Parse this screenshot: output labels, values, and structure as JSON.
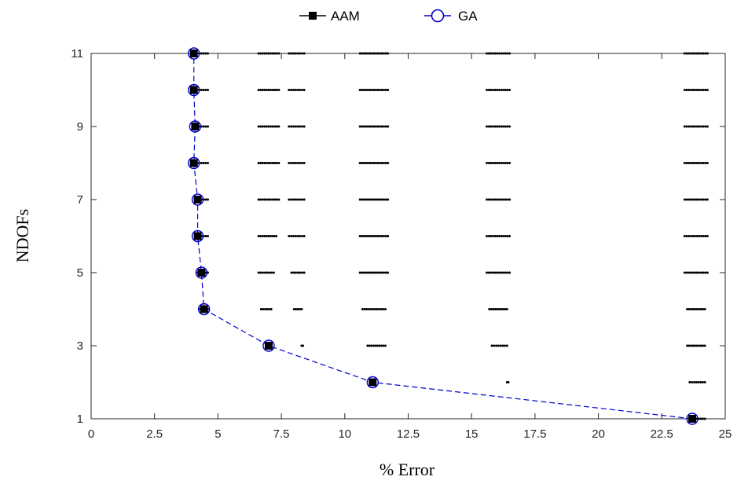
{
  "chart_data": {
    "type": "scatter",
    "xlabel": "% Error",
    "ylabel": "NDOFs",
    "xlim": [
      0,
      25
    ],
    "ylim": [
      1,
      11
    ],
    "xticks": [
      "0",
      "2.5",
      "5",
      "7.5",
      "10",
      "12.5",
      "15",
      "17.5",
      "20",
      "22.5",
      "25"
    ],
    "yticks": [
      "1",
      "3",
      "5",
      "7",
      "9",
      "11"
    ],
    "grid": false,
    "legend_position": "top",
    "legend": [
      {
        "label": "AAM",
        "color": "#000000",
        "marker": "filled-square"
      },
      {
        "label": "GA",
        "color": "#0000cc",
        "marker": "open-circle"
      }
    ],
    "series": [
      {
        "name": "GA",
        "color": "#0000cc",
        "style": "dashed-line-open-circle",
        "x": [
          23.7,
          11.1,
          7.0,
          4.45,
          4.35,
          4.2,
          4.2,
          4.05,
          4.1,
          4.05,
          4.05
        ],
        "y": [
          1,
          2,
          3,
          4,
          5,
          6,
          7,
          8,
          9,
          10,
          11
        ]
      },
      {
        "name": "AAM",
        "color": "#000000",
        "style": "filled-square",
        "x": [
          23.7,
          11.1,
          7.0,
          4.45,
          4.35,
          4.2,
          4.2,
          4.05,
          4.1,
          4.05,
          4.05
        ],
        "y": [
          1,
          2,
          3,
          4,
          5,
          6,
          7,
          8,
          9,
          10,
          11
        ]
      }
    ],
    "aam_scatter_clusters": [
      {
        "y": 1,
        "ranges": [
          [
            23.8,
            24.2
          ]
        ]
      },
      {
        "y": 2,
        "ranges": [
          [
            16.4,
            16.45
          ],
          [
            23.6,
            24.2
          ]
        ]
      },
      {
        "y": 3,
        "ranges": [
          [
            8.3,
            8.35
          ],
          [
            10.9,
            11.6
          ],
          [
            15.8,
            16.4
          ],
          [
            23.5,
            24.2
          ]
        ]
      },
      {
        "y": 4,
        "ranges": [
          [
            4.3,
            4.6
          ],
          [
            6.7,
            7.1
          ],
          [
            8.0,
            8.3
          ],
          [
            10.7,
            11.6
          ],
          [
            15.7,
            16.4
          ],
          [
            23.5,
            24.2
          ]
        ]
      },
      {
        "y": 5,
        "ranges": [
          [
            4.2,
            4.6
          ],
          [
            6.6,
            7.2
          ],
          [
            7.9,
            8.4
          ],
          [
            10.6,
            11.7
          ],
          [
            15.6,
            16.5
          ],
          [
            23.4,
            24.3
          ]
        ]
      },
      {
        "y": 6,
        "ranges": [
          [
            4.1,
            4.6
          ],
          [
            6.6,
            7.3
          ],
          [
            7.8,
            8.4
          ],
          [
            10.6,
            11.7
          ],
          [
            15.6,
            16.5
          ],
          [
            23.4,
            24.3
          ]
        ]
      },
      {
        "y": 7,
        "ranges": [
          [
            4.1,
            4.6
          ],
          [
            6.6,
            7.4
          ],
          [
            7.8,
            8.4
          ],
          [
            10.6,
            11.7
          ],
          [
            15.6,
            16.5
          ],
          [
            23.4,
            24.3
          ]
        ]
      },
      {
        "y": 8,
        "ranges": [
          [
            4.0,
            4.6
          ],
          [
            6.6,
            7.4
          ],
          [
            7.8,
            8.4
          ],
          [
            10.6,
            11.7
          ],
          [
            15.6,
            16.5
          ],
          [
            23.4,
            24.3
          ]
        ]
      },
      {
        "y": 9,
        "ranges": [
          [
            4.0,
            4.6
          ],
          [
            6.6,
            7.4
          ],
          [
            7.8,
            8.4
          ],
          [
            10.6,
            11.7
          ],
          [
            15.6,
            16.5
          ],
          [
            23.4,
            24.3
          ]
        ]
      },
      {
        "y": 10,
        "ranges": [
          [
            4.0,
            4.6
          ],
          [
            6.6,
            7.4
          ],
          [
            7.8,
            8.4
          ],
          [
            10.6,
            11.7
          ],
          [
            15.6,
            16.5
          ],
          [
            23.4,
            24.3
          ]
        ]
      },
      {
        "y": 11,
        "ranges": [
          [
            4.0,
            4.6
          ],
          [
            6.6,
            7.4
          ],
          [
            7.8,
            8.4
          ],
          [
            10.6,
            11.7
          ],
          [
            15.6,
            16.5
          ],
          [
            23.4,
            24.3
          ]
        ]
      }
    ]
  }
}
